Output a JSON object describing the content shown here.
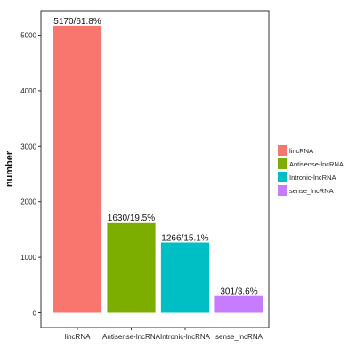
{
  "chart_data": {
    "type": "bar",
    "categories": [
      "lincRNA",
      "Antisense-lncRNA",
      "Intronic-lncRNA",
      "sense_lncRNA"
    ],
    "values": [
      5170,
      1630,
      1266,
      301
    ],
    "data_labels": [
      "5170/61.8%",
      "1630/19.5%",
      "1266/15.1%",
      "301/3.6%"
    ],
    "colors": [
      "#F8766D",
      "#7CAE00",
      "#00BFC4",
      "#C77CFF"
    ],
    "ylabel": "number",
    "ylim": [
      0,
      5400
    ],
    "yticks": [
      0,
      1000,
      2000,
      3000,
      4000,
      5000
    ],
    "grid": false,
    "legend": {
      "position": "right",
      "entries": [
        "lincRNA",
        "Antisense-lncRNA",
        "Intronic-lncRNA",
        "sense_lncRNA"
      ]
    }
  }
}
